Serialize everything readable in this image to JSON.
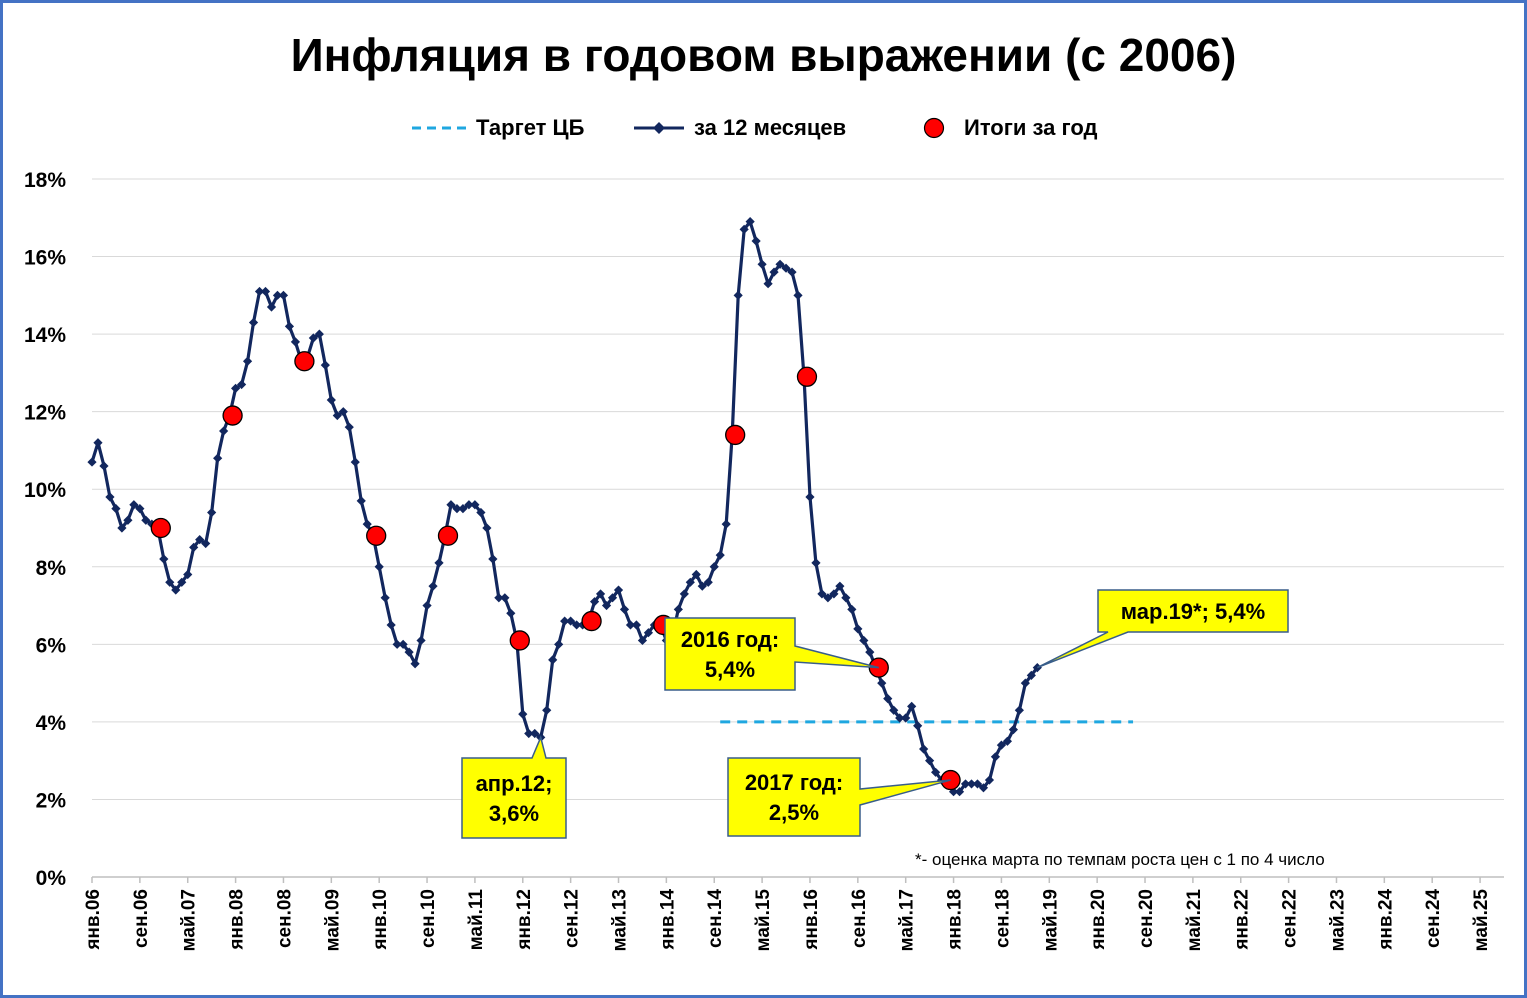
{
  "chart_data": {
    "type": "line",
    "title": "Инфляция в годовом выражении (с 2006)",
    "xlabel": "",
    "ylabel": "",
    "ylim": [
      0,
      18
    ],
    "y_ticks": [
      "0%",
      "2%",
      "4%",
      "6%",
      "8%",
      "10%",
      "12%",
      "14%",
      "16%",
      "18%"
    ],
    "x_range_months": [
      0,
      236
    ],
    "x_ticks": [
      {
        "m": 0,
        "label": "янв.06"
      },
      {
        "m": 8,
        "label": "сен.06"
      },
      {
        "m": 16,
        "label": "май.07"
      },
      {
        "m": 24,
        "label": "янв.08"
      },
      {
        "m": 32,
        "label": "сен.08"
      },
      {
        "m": 40,
        "label": "май.09"
      },
      {
        "m": 48,
        "label": "янв.10"
      },
      {
        "m": 56,
        "label": "сен.10"
      },
      {
        "m": 64,
        "label": "май.11"
      },
      {
        "m": 72,
        "label": "янв.12"
      },
      {
        "m": 80,
        "label": "сен.12"
      },
      {
        "m": 88,
        "label": "май.13"
      },
      {
        "m": 96,
        "label": "янв.14"
      },
      {
        "m": 104,
        "label": "сен.14"
      },
      {
        "m": 112,
        "label": "май.15"
      },
      {
        "m": 120,
        "label": "янв.16"
      },
      {
        "m": 128,
        "label": "сен.16"
      },
      {
        "m": 136,
        "label": "май.17"
      },
      {
        "m": 144,
        "label": "янв.18"
      },
      {
        "m": 152,
        "label": "сен.18"
      },
      {
        "m": 160,
        "label": "май.19"
      },
      {
        "m": 168,
        "label": "янв.20"
      },
      {
        "m": 176,
        "label": "сен.20"
      },
      {
        "m": 184,
        "label": "май.21"
      },
      {
        "m": 192,
        "label": "янв.22"
      },
      {
        "m": 200,
        "label": "сен.22"
      },
      {
        "m": 208,
        "label": "май.23"
      },
      {
        "m": 216,
        "label": "янв.24"
      },
      {
        "m": 224,
        "label": "сен.24"
      },
      {
        "m": 232,
        "label": "май.25"
      }
    ],
    "legend": [
      {
        "name": "Таргет ЦБ",
        "style": "dashed",
        "color": "#1fa7e0"
      },
      {
        "name": "за 12 месяцев",
        "style": "line-diamond",
        "color": "#12275e"
      },
      {
        "name": "Итоги за год",
        "style": "marker",
        "color": "#ff0000"
      }
    ],
    "series": [
      {
        "name": "за 12 месяцев",
        "color": "#12275e",
        "start_month": 0,
        "values": [
          10.7,
          11.2,
          10.6,
          9.8,
          9.5,
          9.0,
          9.2,
          9.6,
          9.5,
          9.2,
          9.1,
          9.0,
          8.2,
          7.6,
          7.4,
          7.6,
          7.8,
          8.5,
          8.7,
          8.6,
          9.4,
          10.8,
          11.5,
          11.9,
          12.6,
          12.7,
          13.3,
          14.3,
          15.1,
          15.1,
          14.7,
          15.0,
          15.0,
          14.2,
          13.8,
          13.3,
          13.4,
          13.9,
          14.0,
          13.2,
          12.3,
          11.9,
          12.0,
          11.6,
          10.7,
          9.7,
          9.1,
          8.8,
          8.0,
          7.2,
          6.5,
          6.0,
          6.0,
          5.8,
          5.5,
          6.1,
          7.0,
          7.5,
          8.1,
          8.8,
          9.6,
          9.5,
          9.5,
          9.6,
          9.6,
          9.4,
          9.0,
          8.2,
          7.2,
          7.2,
          6.8,
          6.1,
          4.2,
          3.7,
          3.7,
          3.6,
          4.3,
          5.6,
          6.0,
          6.6,
          6.6,
          6.5,
          6.5,
          6.6,
          7.1,
          7.3,
          7.0,
          7.2,
          7.4,
          6.9,
          6.5,
          6.5,
          6.1,
          6.3,
          6.5,
          6.5,
          6.1,
          6.2,
          6.9,
          7.3,
          7.6,
          7.8,
          7.5,
          7.6,
          8.0,
          8.3,
          9.1,
          11.4,
          15.0,
          16.7,
          16.9,
          16.4,
          15.8,
          15.3,
          15.6,
          15.8,
          15.7,
          15.6,
          15.0,
          12.9,
          9.8,
          8.1,
          7.3,
          7.2,
          7.3,
          7.5,
          7.2,
          6.9,
          6.4,
          6.1,
          5.8,
          5.4,
          5.0,
          4.6,
          4.3,
          4.1,
          4.1,
          4.4,
          3.9,
          3.3,
          3.0,
          2.7,
          2.5,
          2.5,
          2.2,
          2.2,
          2.4,
          2.4,
          2.4,
          2.3,
          2.5,
          3.1,
          3.4,
          3.5,
          3.8,
          4.3,
          5.0,
          5.2,
          5.4
        ]
      },
      {
        "name": "Таргет ЦБ",
        "color": "#1fa7e0",
        "x_months": [
          105,
          174
        ],
        "values": [
          4.0,
          4.0
        ]
      },
      {
        "name": "Итоги за год",
        "color": "#ff0000",
        "points": [
          {
            "m": 11.5,
            "v": 9.0
          },
          {
            "m": 23.5,
            "v": 11.9
          },
          {
            "m": 35.5,
            "v": 13.3
          },
          {
            "m": 47.5,
            "v": 8.8
          },
          {
            "m": 59.5,
            "v": 8.8
          },
          {
            "m": 71.5,
            "v": 6.1
          },
          {
            "m": 83.5,
            "v": 6.6
          },
          {
            "m": 95.5,
            "v": 6.5
          },
          {
            "m": 107.5,
            "v": 11.4
          },
          {
            "m": 119.5,
            "v": 12.9
          },
          {
            "m": 131.5,
            "v": 5.4
          },
          {
            "m": 143.5,
            "v": 2.5
          }
        ]
      }
    ],
    "annotations": [
      {
        "id": "apr12",
        "lines": [
          "апр.12;",
          "3,6%"
        ],
        "m": 75,
        "v": 3.6
      },
      {
        "id": "y2016",
        "lines": [
          "2016 год:",
          "5,4%"
        ],
        "m": 131.5,
        "v": 5.4
      },
      {
        "id": "y2017",
        "lines": [
          "2017 год:",
          "2,5%"
        ],
        "m": 143.5,
        "v": 2.5
      },
      {
        "id": "mar19",
        "lines": [
          "мар.19*; 5,4%"
        ],
        "m": 158,
        "v": 5.4
      }
    ],
    "footnote": "*- оценка марта по темпам роста цен  с 1 по 4 число"
  }
}
